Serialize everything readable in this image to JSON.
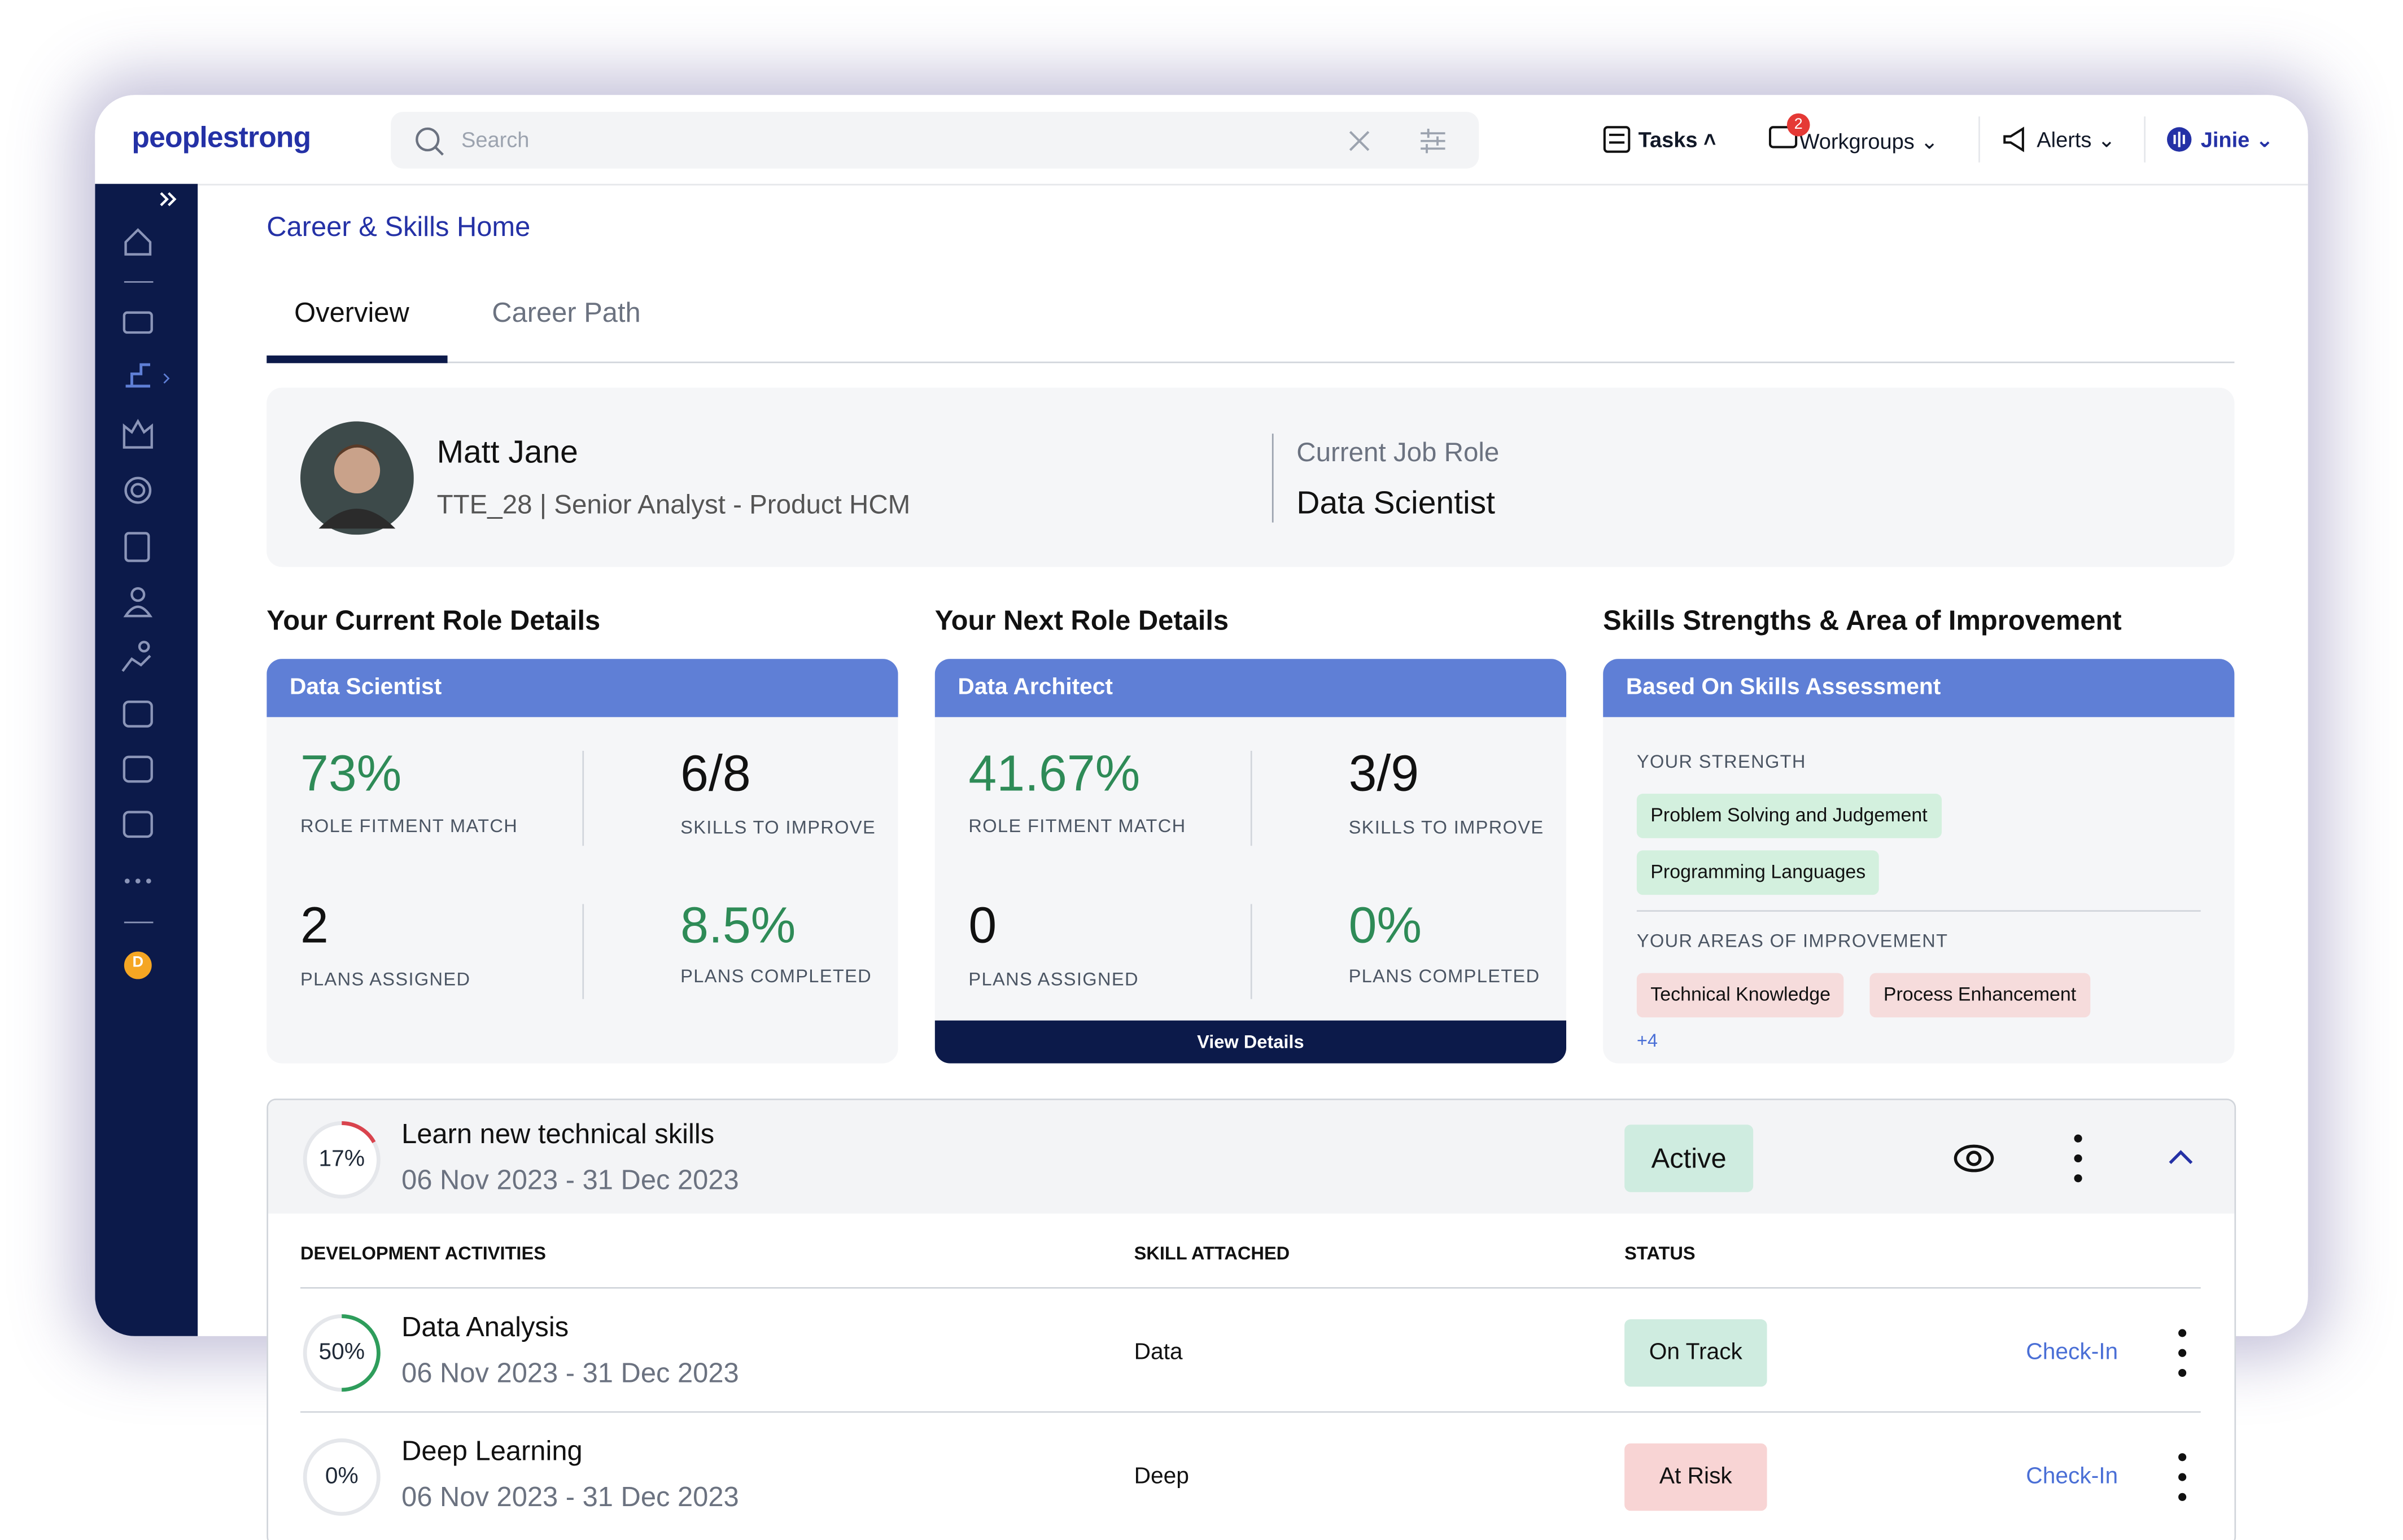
{
  "header": {
    "logo": "peoplestrong",
    "search_placeholder": "Search",
    "nav": [
      {
        "label": "Tasks"
      },
      {
        "label": "Workgroups",
        "badge": "2"
      },
      {
        "label": "Alerts"
      },
      {
        "label": "Jinie"
      }
    ]
  },
  "sidebar": {
    "avatar": "D"
  },
  "breadcrumb": "Career & Skills Home",
  "tabs": [
    "Overview",
    "Career Path"
  ],
  "profile": {
    "name": "Matt Jane",
    "id_role": "TTE_28 | Senior Analyst - Product HCM",
    "current_role_label": "Current Job Role",
    "current_role": "Data Scientist"
  },
  "current_role": {
    "title": "Your Current Role Details",
    "header": "Data Scientist",
    "stats": [
      {
        "value": "73%",
        "label": "ROLE FITMENT MATCH"
      },
      {
        "value": "6/8",
        "label": "SKILLS TO IMPROVE"
      },
      {
        "value": "2",
        "label": "PLANS ASSIGNED"
      },
      {
        "value": "8.5%",
        "label": "PLANS COMPLETED"
      }
    ]
  },
  "next_role": {
    "title": "Your Next Role Details",
    "header": "Data Architect",
    "stats": [
      {
        "value": "41.67%",
        "label": "ROLE FITMENT MATCH"
      },
      {
        "value": "3/9",
        "label": "SKILLS TO IMPROVE"
      },
      {
        "value": "0",
        "label": "PLANS ASSIGNED"
      },
      {
        "value": "0%",
        "label": "PLANS COMPLETED"
      }
    ],
    "button": "View Details"
  },
  "skills": {
    "title": "Skills Strengths & Area of Improvement",
    "header": "Based On Skills Assessment",
    "strength_label": "YOUR STRENGTH",
    "strengths": [
      "Problem Solving and Judgement",
      "Programming Languages"
    ],
    "improvement_label": "YOUR AREAS OF IMPROVEMENT",
    "improvements": [
      "Technical Knowledge",
      "Process Enhancement"
    ],
    "more": "+4"
  },
  "plan": {
    "progress": {
      "value": 17,
      "label": "17%"
    },
    "title": "Learn new technical skills",
    "dates": "06 Nov 2023 - 31 Dec 2023",
    "status": "Active"
  },
  "activities": {
    "columns": [
      "DEVELOPMENT ACTIVITIES",
      "SKILL ATTACHED",
      "STATUS"
    ],
    "rows": [
      {
        "progress": {
          "value": 50,
          "label": "50%"
        },
        "name": "Data Analysis",
        "dates": "06 Nov 2023 - 31 Dec 2023",
        "skill": "Data",
        "status": "On Track",
        "action": "Check-In"
      },
      {
        "progress": {
          "value": 0,
          "label": "0%"
        },
        "name": "Deep Learning",
        "dates": "06 Nov 2023 - 31 Dec 2023",
        "skill": "Deep",
        "status": "At Risk",
        "action": "Check-In"
      }
    ]
  }
}
